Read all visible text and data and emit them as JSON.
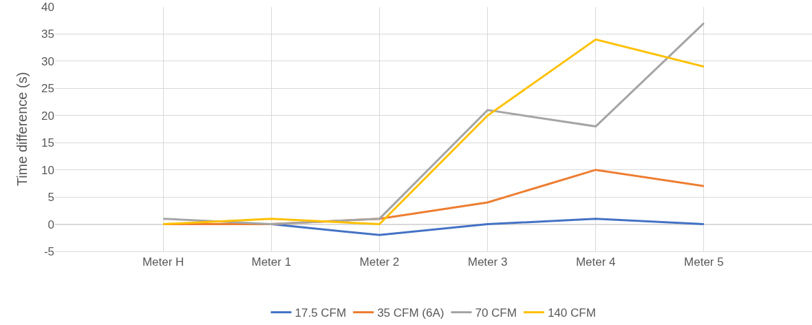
{
  "chart_data": {
    "type": "line",
    "ylabel": "Time difference (s)",
    "categories": [
      null,
      "Meter H",
      "Meter 1",
      "Meter 2",
      "Meter 3",
      "Meter 4",
      "Meter 5",
      null
    ],
    "series": [
      {
        "name": "17.5 CFM",
        "color": "#4472c4",
        "values": [
          null,
          0,
          0,
          -2,
          0,
          1,
          0,
          null
        ]
      },
      {
        "name": "35 CFM (6A)",
        "color": "#ed7d31",
        "values": [
          null,
          0,
          0,
          1,
          4,
          10,
          7,
          null
        ]
      },
      {
        "name": "70 CFM",
        "color": "#a5a5a5",
        "values": [
          null,
          1,
          0,
          1,
          21,
          18,
          37,
          null
        ]
      },
      {
        "name": "140 CFM",
        "color": "#ffc000",
        "values": [
          null,
          0,
          1,
          0,
          20,
          34,
          29,
          null
        ]
      }
    ],
    "ylim": [
      -5,
      40
    ],
    "yticks": [
      -5,
      0,
      5,
      10,
      15,
      20,
      25,
      30,
      35,
      40
    ],
    "grid": true,
    "legend": "bottom",
    "marker": "none",
    "line_style": "solid"
  }
}
